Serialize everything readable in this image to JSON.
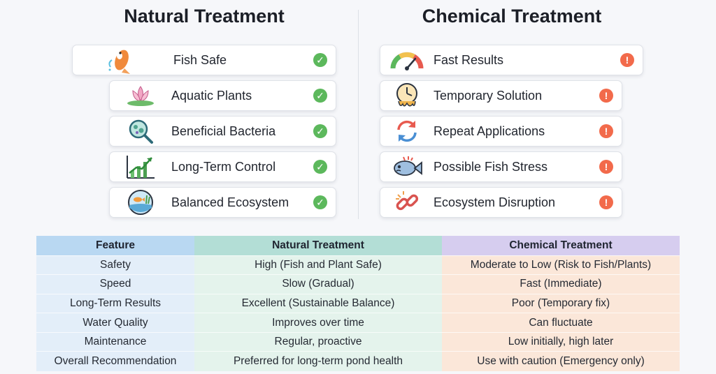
{
  "natural": {
    "heading": "Natural Treatment",
    "items": [
      {
        "label": "Fish Safe",
        "icon": "koi-fish-icon"
      },
      {
        "label": "Aquatic Plants",
        "icon": "lotus-icon"
      },
      {
        "label": "Beneficial Bacteria",
        "icon": "bacteria-magnifier-icon"
      },
      {
        "label": "Long-Term Control",
        "icon": "growth-chart-icon"
      },
      {
        "label": "Balanced Ecosystem",
        "icon": "ecosystem-globe-icon"
      }
    ],
    "status_icon": "check-circle-icon",
    "status_color": "#5cb85c"
  },
  "chemical": {
    "heading": "Chemical Treatment",
    "items": [
      {
        "label": "Fast Results",
        "icon": "speedometer-icon"
      },
      {
        "label": "Temporary Solution",
        "icon": "melting-clock-icon"
      },
      {
        "label": "Repeat Applications",
        "icon": "repeat-arrows-icon"
      },
      {
        "label": "Possible Fish Stress",
        "icon": "stressed-fish-icon"
      },
      {
        "label": "Ecosystem Disruption",
        "icon": "broken-chain-icon"
      }
    ],
    "status_icon": "warning-circle-icon",
    "status_color": "#f26a4b"
  },
  "table": {
    "headers": [
      "Feature",
      "Natural Treatment",
      "Chemical Treatment"
    ],
    "rows": [
      [
        "Safety",
        "High (Fish and Plant Safe)",
        "Moderate to Low (Risk to Fish/Plants)"
      ],
      [
        "Speed",
        "Slow (Gradual)",
        "Fast (Immediate)"
      ],
      [
        "Long-Term Results",
        "Excellent (Sustainable Balance)",
        "Poor (Temporary fix)"
      ],
      [
        "Water Quality",
        "Improves over time",
        "Can fluctuate"
      ],
      [
        "Maintenance",
        "Regular, proactive",
        "Low initially, high later"
      ],
      [
        "Overall Recommendation",
        "Preferred for long-term pond health",
        "Use with caution (Emergency only)"
      ]
    ]
  }
}
